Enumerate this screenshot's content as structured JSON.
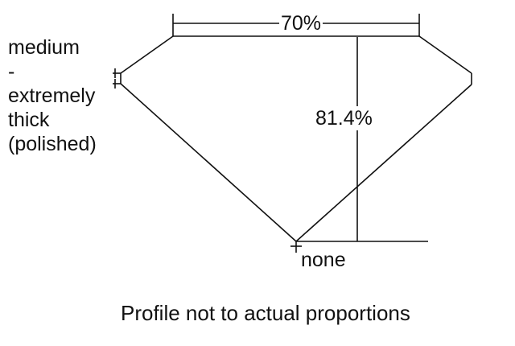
{
  "diagram": {
    "table_percent": "70%",
    "depth_percent": "81.4%",
    "girdle_label": [
      "medium",
      "-",
      "extremely",
      "thick",
      "(polished)"
    ],
    "culet_label": "none",
    "caption": "Profile not to actual proportions",
    "line_color": "#111111"
  }
}
